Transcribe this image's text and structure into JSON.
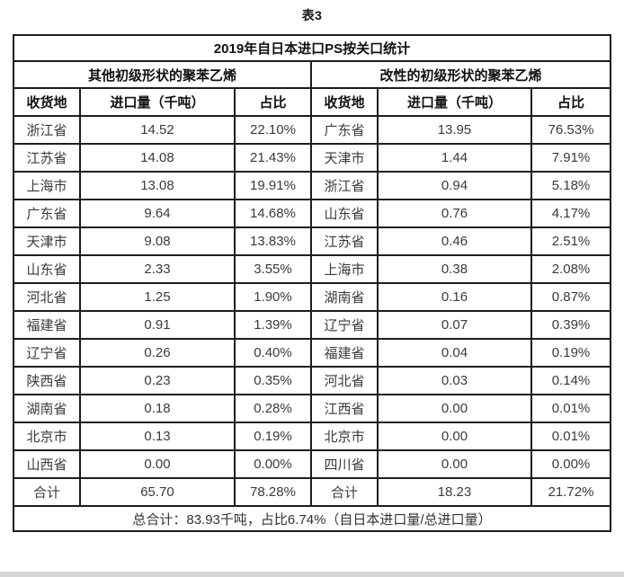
{
  "page": {
    "caption": "表3",
    "strip_color": "#d6d6d6",
    "border_color": "#1d1d1d"
  },
  "chart_data": {
    "type": "table",
    "title": "2019年自日本进口PS按关口统计",
    "column_headers": [
      "收货地",
      "进口量（千吨）",
      "占比"
    ],
    "sections": [
      {
        "name": "其他初级形状的聚苯乙烯",
        "rows": [
          {
            "place": "浙江省",
            "volume": "14.52",
            "share": "22.10%"
          },
          {
            "place": "江苏省",
            "volume": "14.08",
            "share": "21.43%"
          },
          {
            "place": "上海市",
            "volume": "13.08",
            "share": "19.91%"
          },
          {
            "place": "广东省",
            "volume": "9.64",
            "share": "14.68%"
          },
          {
            "place": "天津市",
            "volume": "9.08",
            "share": "13.83%"
          },
          {
            "place": "山东省",
            "volume": "2.33",
            "share": "3.55%"
          },
          {
            "place": "河北省",
            "volume": "1.25",
            "share": "1.90%"
          },
          {
            "place": "福建省",
            "volume": "0.91",
            "share": "1.39%"
          },
          {
            "place": "辽宁省",
            "volume": "0.26",
            "share": "0.40%"
          },
          {
            "place": "陕西省",
            "volume": "0.23",
            "share": "0.35%"
          },
          {
            "place": "湖南省",
            "volume": "0.18",
            "share": "0.28%"
          },
          {
            "place": "北京市",
            "volume": "0.13",
            "share": "0.19%"
          },
          {
            "place": "山西省",
            "volume": "0.00",
            "share": "0.00%"
          }
        ],
        "total": {
          "label": "合计",
          "volume": "65.70",
          "share": "78.28%"
        }
      },
      {
        "name": "改性的初级形状的聚苯乙烯",
        "rows": [
          {
            "place": "广东省",
            "volume": "13.95",
            "share": "76.53%"
          },
          {
            "place": "天津市",
            "volume": "1.44",
            "share": "7.91%"
          },
          {
            "place": "浙江省",
            "volume": "0.94",
            "share": "5.18%"
          },
          {
            "place": "山东省",
            "volume": "0.76",
            "share": "4.17%"
          },
          {
            "place": "江苏省",
            "volume": "0.46",
            "share": "2.51%"
          },
          {
            "place": "上海市",
            "volume": "0.38",
            "share": "2.08%"
          },
          {
            "place": "湖南省",
            "volume": "0.16",
            "share": "0.87%"
          },
          {
            "place": "辽宁省",
            "volume": "0.07",
            "share": "0.39%"
          },
          {
            "place": "福建省",
            "volume": "0.04",
            "share": "0.19%"
          },
          {
            "place": "河北省",
            "volume": "0.03",
            "share": "0.14%"
          },
          {
            "place": "江西省",
            "volume": "0.00",
            "share": "0.01%"
          },
          {
            "place": "北京市",
            "volume": "0.00",
            "share": "0.01%"
          },
          {
            "place": "四川省",
            "volume": "0.00",
            "share": "0.00%"
          }
        ],
        "total": {
          "label": "合计",
          "volume": "18.23",
          "share": "21.72%"
        }
      }
    ],
    "grand_total_note": "总合计：83.93千吨，占比6.74%（自日本进口量/总进口量）"
  }
}
